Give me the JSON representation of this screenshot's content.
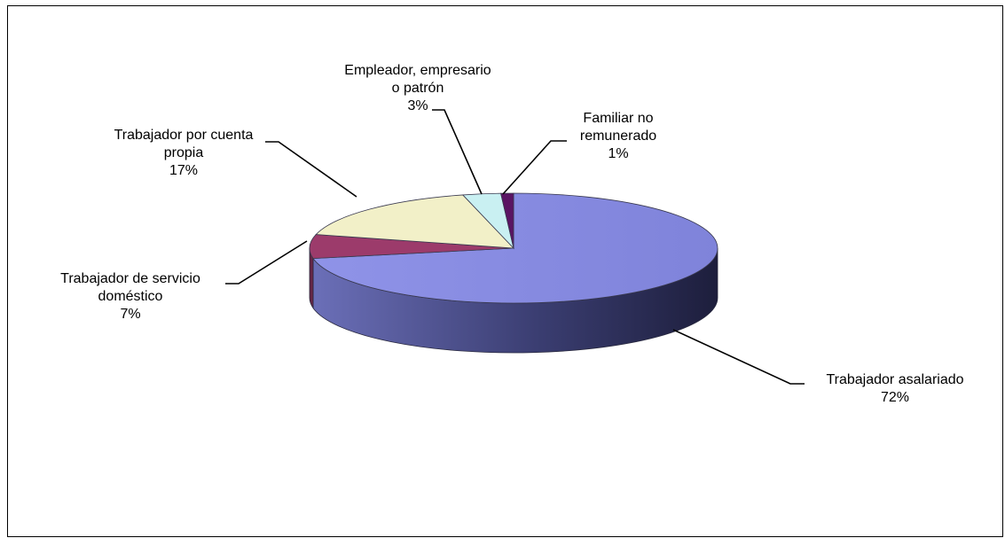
{
  "chart_data": {
    "type": "pie",
    "title": "",
    "legend": "none",
    "slices": [
      {
        "name": "Trabajador asalariado",
        "value": 72,
        "color": "#8a8ee6",
        "label_lines": [
          "Trabajador asalariado",
          "72%"
        ]
      },
      {
        "name": "Trabajador de servicio doméstico",
        "value": 7,
        "color": "#9c3b6b",
        "label_lines": [
          "Trabajador de servicio",
          "doméstico",
          "7%"
        ]
      },
      {
        "name": "Trabajador por cuenta propia",
        "value": 17,
        "color": "#f2f0c8",
        "label_lines": [
          "Trabajador por cuenta",
          "propia",
          "17%"
        ]
      },
      {
        "name": "Empleador, empresario o patrón",
        "value": 3,
        "color": "#c9f0f2",
        "label_lines": [
          "Empleador, empresario",
          "o patrón",
          "3%"
        ]
      },
      {
        "name": "Familiar no remunerado",
        "value": 1,
        "color": "#5a1463",
        "label_lines": [
          "Familiar no",
          "remunerado",
          "1%"
        ]
      }
    ]
  }
}
